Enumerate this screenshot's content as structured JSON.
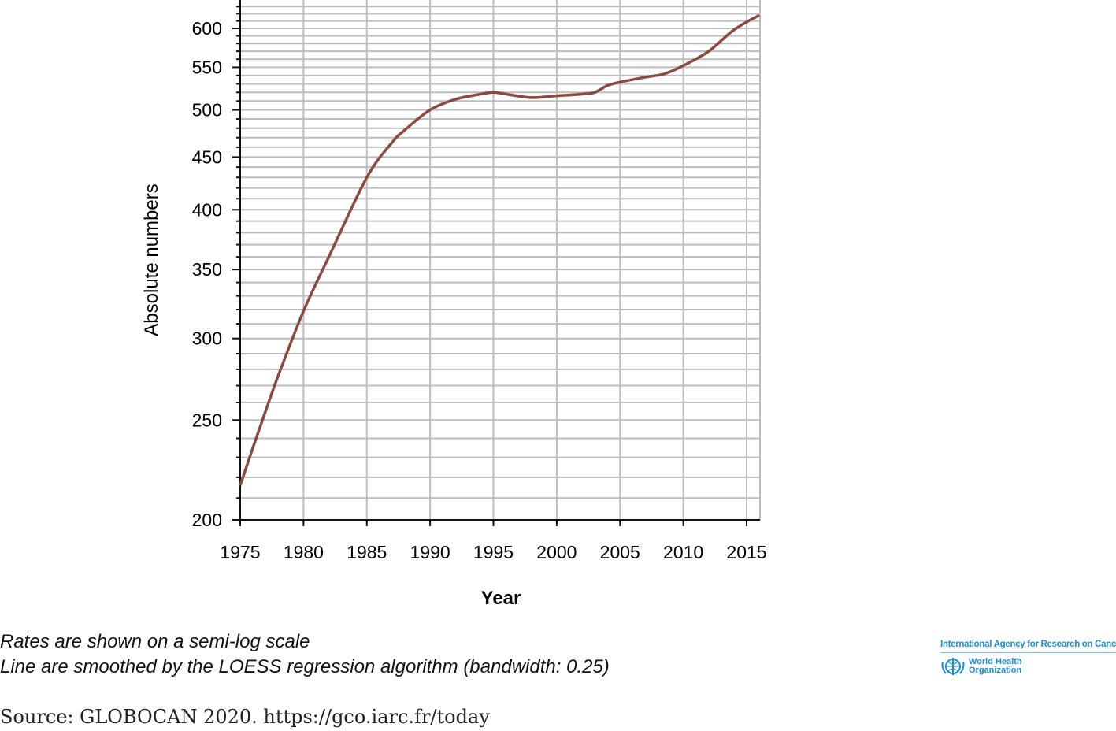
{
  "chart_data": {
    "type": "line",
    "title": "",
    "xlabel": "Year",
    "ylabel": "Absolute numbers",
    "yscale": "log",
    "xlim": [
      1975,
      2016
    ],
    "ylim": [
      200,
      640
    ],
    "x_ticks": [
      1975,
      1980,
      1985,
      1990,
      1995,
      2000,
      2005,
      2010,
      2015
    ],
    "y_ticks": [
      200,
      250,
      300,
      350,
      400,
      450,
      500,
      550,
      600
    ],
    "grid": true,
    "series": [
      {
        "name": "Absolute numbers",
        "color": "#8b4a3f",
        "x": [
          1975,
          1976,
          1977,
          1978,
          1980,
          1982,
          1985,
          1987,
          1988,
          1990,
          1992,
          1994,
          1995,
          1996,
          1998,
          2000,
          2002,
          2003,
          2004,
          2005,
          2007,
          2008.5,
          2010,
          2012,
          2014,
          2016
        ],
        "y": [
          216,
          235,
          255,
          276,
          319,
          360,
          430,
          465,
          478,
          500,
          512,
          518,
          520,
          518,
          514,
          516,
          518,
          520,
          528,
          532,
          538,
          542,
          552,
          570,
          598,
          618
        ]
      }
    ]
  },
  "notes": [
    "Rates are shown on a semi-log scale",
    "Line are smoothed by the LOESS regression algorithm (bandwidth: 0.25)"
  ],
  "source": "Source: GLOBOCAN 2020. https://gco.iarc.fr/today",
  "logo": {
    "iarc": "International Agency for Research on Cancer",
    "who_line1": "World Health",
    "who_line2": "Organization"
  }
}
